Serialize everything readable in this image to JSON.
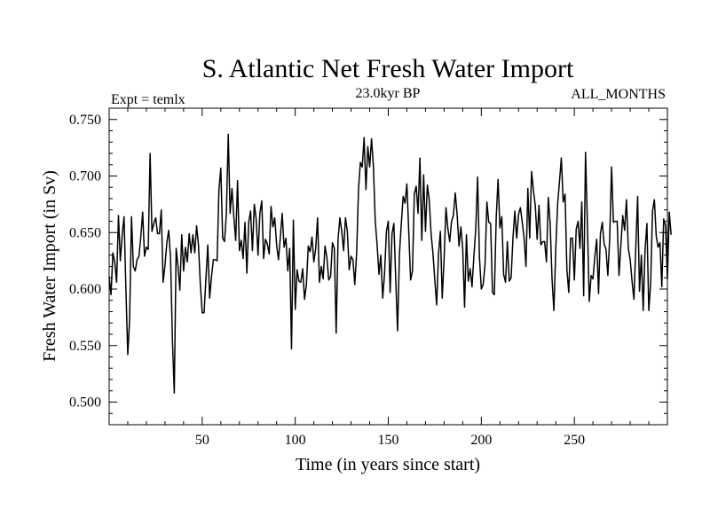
{
  "chart_data": {
    "type": "line",
    "title": "S. Atlantic Net Fresh Water Import",
    "subtitle_left": "Expt = temlx",
    "subtitle_center": "23.0kyr BP",
    "subtitle_right": "ALL_MONTHS",
    "xlabel": "Time (in years since start)",
    "ylabel": "Fresh Water Import (in Sv)",
    "xlim": [
      0,
      300
    ],
    "ylim": [
      0.48,
      0.76
    ],
    "xticks": [
      50,
      100,
      150,
      200,
      250
    ],
    "yticks": [
      0.5,
      0.55,
      0.6,
      0.65,
      0.7,
      0.75
    ],
    "ytick_labels": [
      "0.500",
      "0.550",
      "0.600",
      "0.650",
      "0.700",
      "0.750"
    ],
    "series": [
      {
        "name": "Fresh Water Import",
        "color": "#000000",
        "x_start": 0,
        "x_step": 1,
        "values": [
          0.611,
          0.595,
          0.632,
          0.624,
          0.606,
          0.665,
          0.625,
          0.648,
          0.664,
          0.6,
          0.542,
          0.573,
          0.664,
          0.62,
          0.616,
          0.626,
          0.629,
          0.646,
          0.668,
          0.629,
          0.637,
          0.635,
          0.72,
          0.651,
          0.658,
          0.663,
          0.649,
          0.649,
          0.67,
          0.606,
          0.621,
          0.641,
          0.652,
          0.627,
          0.555,
          0.508,
          0.636,
          0.62,
          0.599,
          0.648,
          0.616,
          0.637,
          0.624,
          0.649,
          0.632,
          0.648,
          0.632,
          0.656,
          0.639,
          0.604,
          0.579,
          0.579,
          0.609,
          0.639,
          0.592,
          0.611,
          0.626,
          0.626,
          0.625,
          0.688,
          0.707,
          0.645,
          0.642,
          0.667,
          0.737,
          0.667,
          0.689,
          0.664,
          0.643,
          0.696,
          0.634,
          0.643,
          0.627,
          0.659,
          0.614,
          0.659,
          0.669,
          0.634,
          0.675,
          0.662,
          0.63,
          0.667,
          0.678,
          0.627,
          0.644,
          0.64,
          0.631,
          0.673,
          0.655,
          0.663,
          0.639,
          0.626,
          0.646,
          0.667,
          0.637,
          0.645,
          0.616,
          0.636,
          0.547,
          0.661,
          0.582,
          0.617,
          0.607,
          0.606,
          0.618,
          0.591,
          0.604,
          0.638,
          0.633,
          0.646,
          0.624,
          0.636,
          0.663,
          0.606,
          0.62,
          0.609,
          0.638,
          0.628,
          0.608,
          0.611,
          0.641,
          0.636,
          0.561,
          0.644,
          0.663,
          0.651,
          0.634,
          0.663,
          0.651,
          0.617,
          0.629,
          0.626,
          0.604,
          0.632,
          0.688,
          0.712,
          0.708,
          0.734,
          0.688,
          0.726,
          0.708,
          0.733,
          0.709,
          0.66,
          0.639,
          0.613,
          0.63,
          0.592,
          0.614,
          0.651,
          0.66,
          0.597,
          0.649,
          0.658,
          0.609,
          0.563,
          0.631,
          0.658,
          0.682,
          0.676,
          0.693,
          0.651,
          0.608,
          0.616,
          0.684,
          0.691,
          0.667,
          0.716,
          0.643,
          0.701,
          0.651,
          0.692,
          0.679,
          0.649,
          0.632,
          0.608,
          0.586,
          0.631,
          0.651,
          0.592,
          0.627,
          0.672,
          0.654,
          0.642,
          0.66,
          0.665,
          0.685,
          0.666,
          0.638,
          0.655,
          0.636,
          0.584,
          0.648,
          0.607,
          0.618,
          0.602,
          0.629,
          0.653,
          0.699,
          0.628,
          0.6,
          0.604,
          0.622,
          0.677,
          0.659,
          0.658,
          0.597,
          0.595,
          0.663,
          0.697,
          0.654,
          0.664,
          0.613,
          0.606,
          0.642,
          0.607,
          0.61,
          0.645,
          0.669,
          0.645,
          0.666,
          0.672,
          0.659,
          0.645,
          0.62,
          0.689,
          0.645,
          0.704,
          0.687,
          0.674,
          0.644,
          0.674,
          0.639,
          0.642,
          0.642,
          0.624,
          0.681,
          0.658,
          0.609,
          0.581,
          0.635,
          0.675,
          0.695,
          0.716,
          0.677,
          0.684,
          0.617,
          0.597,
          0.645,
          0.645,
          0.608,
          0.653,
          0.66,
          0.636,
          0.677,
          0.594,
          0.721,
          0.658,
          0.589,
          0.612,
          0.609,
          0.629,
          0.644,
          0.596,
          0.649,
          0.659,
          0.64,
          0.635,
          0.612,
          0.645,
          0.708,
          0.659,
          0.66,
          0.66,
          0.612,
          0.639,
          0.665,
          0.652,
          0.679,
          0.636,
          0.626,
          0.607,
          0.591,
          0.636,
          0.682,
          0.598,
          0.63,
          0.581,
          0.635,
          0.658,
          0.581,
          0.605,
          0.669,
          0.679,
          0.647,
          0.637,
          0.641,
          0.602,
          0.662,
          0.656,
          0.609,
          0.668,
          0.648
        ]
      }
    ]
  }
}
